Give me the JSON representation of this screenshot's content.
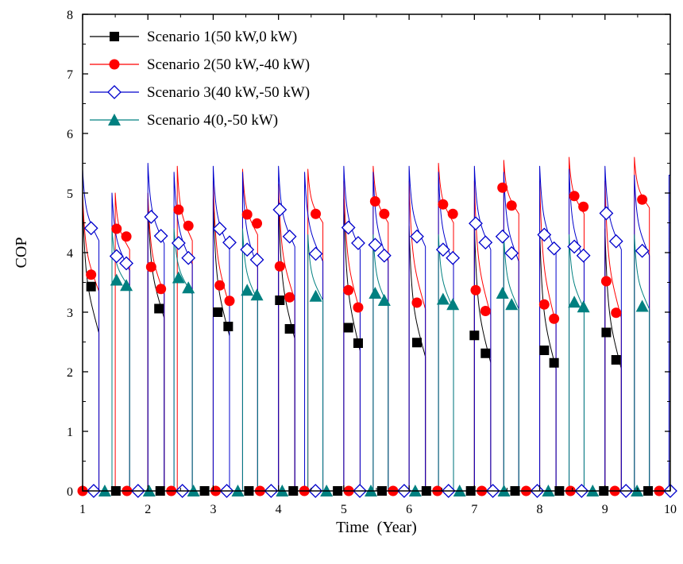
{
  "chart_data": {
    "type": "line",
    "xlabel": "Time  (Year)",
    "ylabel": "COP",
    "xlim": [
      1,
      10
    ],
    "ylim": [
      0,
      8
    ],
    "x_ticks": [
      "1",
      "2",
      "3",
      "4",
      "5",
      "6",
      "7",
      "8",
      "9",
      "10"
    ],
    "y_ticks": [
      "0",
      "1",
      "2",
      "3",
      "4",
      "5",
      "6",
      "7",
      "8"
    ],
    "grid": false,
    "legend_position": "top-left",
    "series": [
      {
        "name": "Scenario 1(50 kW,0 kW)",
        "color": "#000000",
        "marker": "square-filled",
        "cycles": [
          {
            "start": 1.0,
            "end": 1.25,
            "peak": 4.9,
            "low": 2.65
          },
          {
            "start": 2.0,
            "end": 2.25,
            "peak": 4.9,
            "low": 2.9
          },
          {
            "start": 3.0,
            "end": 3.25,
            "peak": 4.9,
            "low": 2.6
          },
          {
            "start": 4.0,
            "end": 4.25,
            "peak": 4.9,
            "low": 2.55
          },
          {
            "start": 5.0,
            "end": 5.25,
            "peak": 4.9,
            "low": 2.35
          },
          {
            "start": 6.0,
            "end": 6.25,
            "peak": 4.45,
            "low": 2.25
          },
          {
            "start": 7.0,
            "end": 7.25,
            "peak": 4.5,
            "low": 2.15
          },
          {
            "start": 8.0,
            "end": 8.25,
            "peak": 4.4,
            "low": 2.05
          },
          {
            "start": 9.0,
            "end": 9.25,
            "peak": 4.4,
            "low": 2.05
          }
        ],
        "markers": [
          [
            1.13,
            3.43
          ],
          [
            2.17,
            3.06
          ],
          [
            3.07,
            3.0
          ],
          [
            3.23,
            2.76
          ],
          [
            4.02,
            3.2
          ],
          [
            4.17,
            2.72
          ],
          [
            5.07,
            2.74
          ],
          [
            5.22,
            2.48
          ],
          [
            6.12,
            2.49
          ],
          [
            7.0,
            2.61
          ],
          [
            7.17,
            2.31
          ],
          [
            8.07,
            2.36
          ],
          [
            8.22,
            2.15
          ],
          [
            9.02,
            2.66
          ],
          [
            9.17,
            2.2
          ]
        ]
      },
      {
        "name": "Scenario 2(50 kW,-40 kW)",
        "color": "#ff0000",
        "marker": "circle-filled",
        "cycles": [
          {
            "start": 1.0,
            "end": 1.25,
            "peak": 5.0,
            "low": 3.35
          },
          {
            "start": 1.5,
            "end": 1.72,
            "peak": 5.0,
            "low": 4.05
          },
          {
            "start": 2.0,
            "end": 2.25,
            "peak": 5.0,
            "low": 3.3
          },
          {
            "start": 2.45,
            "end": 2.68,
            "peak": 5.45,
            "low": 4.2
          },
          {
            "start": 3.0,
            "end": 3.25,
            "peak": 5.2,
            "low": 3.1
          },
          {
            "start": 3.45,
            "end": 3.68,
            "peak": 5.4,
            "low": 4.3
          },
          {
            "start": 4.0,
            "end": 4.25,
            "peak": 5.15,
            "low": 3.2
          },
          {
            "start": 4.45,
            "end": 4.68,
            "peak": 5.4,
            "low": 4.5
          },
          {
            "start": 5.0,
            "end": 5.25,
            "peak": 5.2,
            "low": 3.0
          },
          {
            "start": 5.45,
            "end": 5.68,
            "peak": 5.45,
            "low": 4.5
          },
          {
            "start": 6.0,
            "end": 6.25,
            "peak": 5.2,
            "low": 3.05
          },
          {
            "start": 6.45,
            "end": 6.68,
            "peak": 5.5,
            "low": 4.5
          },
          {
            "start": 7.0,
            "end": 7.25,
            "peak": 5.2,
            "low": 2.95
          },
          {
            "start": 7.45,
            "end": 7.68,
            "peak": 5.55,
            "low": 4.65
          },
          {
            "start": 8.0,
            "end": 8.25,
            "peak": 5.2,
            "low": 2.8
          },
          {
            "start": 8.45,
            "end": 8.68,
            "peak": 5.6,
            "low": 4.65
          },
          {
            "start": 9.0,
            "end": 9.25,
            "peak": 5.2,
            "low": 2.9
          },
          {
            "start": 9.45,
            "end": 9.68,
            "peak": 5.6,
            "low": 4.75
          }
        ],
        "markers": [
          [
            1.13,
            3.63
          ],
          [
            1.52,
            4.4
          ],
          [
            1.67,
            4.27
          ],
          [
            2.05,
            3.76
          ],
          [
            2.2,
            3.39
          ],
          [
            2.47,
            4.72
          ],
          [
            2.62,
            4.45
          ],
          [
            3.1,
            3.45
          ],
          [
            3.25,
            3.19
          ],
          [
            3.52,
            4.64
          ],
          [
            3.67,
            4.49
          ],
          [
            4.02,
            3.77
          ],
          [
            4.17,
            3.25
          ],
          [
            4.57,
            4.65
          ],
          [
            5.07,
            3.37
          ],
          [
            5.22,
            3.08
          ],
          [
            5.48,
            4.86
          ],
          [
            5.62,
            4.65
          ],
          [
            6.12,
            3.16
          ],
          [
            6.52,
            4.81
          ],
          [
            6.67,
            4.65
          ],
          [
            7.02,
            3.37
          ],
          [
            7.17,
            3.02
          ],
          [
            7.43,
            5.09
          ],
          [
            7.57,
            4.79
          ],
          [
            8.07,
            3.13
          ],
          [
            8.22,
            2.89
          ],
          [
            8.53,
            4.95
          ],
          [
            8.67,
            4.77
          ],
          [
            9.02,
            3.52
          ],
          [
            9.17,
            2.99
          ],
          [
            9.57,
            4.89
          ]
        ]
      },
      {
        "name": "Scenario 3(40 kW,-50 kW)",
        "color": "#0000cc",
        "marker": "diamond-open",
        "cycles": [
          {
            "start": 1.0,
            "end": 1.25,
            "peak": 5.4,
            "low": 4.2
          },
          {
            "start": 1.45,
            "end": 1.72,
            "peak": 5.0,
            "low": 3.7
          },
          {
            "start": 2.0,
            "end": 2.25,
            "peak": 5.5,
            "low": 4.15
          },
          {
            "start": 2.4,
            "end": 2.68,
            "peak": 5.35,
            "low": 3.8
          },
          {
            "start": 3.0,
            "end": 3.25,
            "peak": 5.45,
            "low": 4.05
          },
          {
            "start": 3.45,
            "end": 3.68,
            "peak": 5.35,
            "low": 3.75
          },
          {
            "start": 4.0,
            "end": 4.25,
            "peak": 5.45,
            "low": 4.1
          },
          {
            "start": 4.4,
            "end": 4.68,
            "peak": 5.35,
            "low": 3.85
          },
          {
            "start": 5.0,
            "end": 5.25,
            "peak": 5.45,
            "low": 4.05
          },
          {
            "start": 5.45,
            "end": 5.68,
            "peak": 5.35,
            "low": 3.85
          },
          {
            "start": 6.0,
            "end": 6.25,
            "peak": 5.45,
            "low": 4.1
          },
          {
            "start": 6.45,
            "end": 6.68,
            "peak": 5.35,
            "low": 3.8
          },
          {
            "start": 7.0,
            "end": 7.25,
            "peak": 5.45,
            "low": 4.05
          },
          {
            "start": 7.45,
            "end": 7.68,
            "peak": 5.35,
            "low": 3.85
          },
          {
            "start": 8.0,
            "end": 8.25,
            "peak": 5.45,
            "low": 4.0
          },
          {
            "start": 8.45,
            "end": 8.68,
            "peak": 5.4,
            "low": 3.85
          },
          {
            "start": 9.0,
            "end": 9.25,
            "peak": 5.45,
            "low": 4.05
          },
          {
            "start": 9.45,
            "end": 9.68,
            "peak": 5.3,
            "low": 3.95
          },
          {
            "start": 9.98,
            "end": 10.0,
            "peak": 5.3,
            "low": 5.3
          }
        ],
        "markers": [
          [
            1.13,
            4.41
          ],
          [
            1.52,
            3.94
          ],
          [
            1.67,
            3.82
          ],
          [
            2.05,
            4.6
          ],
          [
            2.2,
            4.28
          ],
          [
            2.47,
            4.16
          ],
          [
            2.62,
            3.91
          ],
          [
            3.1,
            4.4
          ],
          [
            3.25,
            4.17
          ],
          [
            3.52,
            4.05
          ],
          [
            3.67,
            3.88
          ],
          [
            4.02,
            4.72
          ],
          [
            4.17,
            4.27
          ],
          [
            4.57,
            3.98
          ],
          [
            5.07,
            4.42
          ],
          [
            5.22,
            4.16
          ],
          [
            5.48,
            4.13
          ],
          [
            5.62,
            3.95
          ],
          [
            6.12,
            4.27
          ],
          [
            6.52,
            4.05
          ],
          [
            6.67,
            3.91
          ],
          [
            7.02,
            4.49
          ],
          [
            7.17,
            4.17
          ],
          [
            7.43,
            4.27
          ],
          [
            7.57,
            3.99
          ],
          [
            8.07,
            4.3
          ],
          [
            8.22,
            4.07
          ],
          [
            8.53,
            4.1
          ],
          [
            8.67,
            3.95
          ],
          [
            9.02,
            4.66
          ],
          [
            9.17,
            4.19
          ],
          [
            9.57,
            4.03
          ]
        ]
      },
      {
        "name": "Scenario 4(0,-50 kW)",
        "color": "#008080",
        "marker": "triangle-filled",
        "cycles": [
          {
            "start": 1.45,
            "end": 1.72,
            "peak": 4.4,
            "low": 3.4
          },
          {
            "start": 2.4,
            "end": 2.68,
            "peak": 4.4,
            "low": 3.3
          },
          {
            "start": 3.45,
            "end": 3.68,
            "peak": 4.4,
            "low": 3.2
          },
          {
            "start": 4.45,
            "end": 4.68,
            "peak": 4.3,
            "low": 3.2
          },
          {
            "start": 5.45,
            "end": 5.68,
            "peak": 4.3,
            "low": 3.1
          },
          {
            "start": 6.45,
            "end": 6.68,
            "peak": 4.3,
            "low": 3.05
          },
          {
            "start": 7.45,
            "end": 7.68,
            "peak": 4.3,
            "low": 3.05
          },
          {
            "start": 8.45,
            "end": 8.68,
            "peak": 4.3,
            "low": 3.05
          },
          {
            "start": 9.45,
            "end": 9.68,
            "peak": 4.3,
            "low": 3.05
          }
        ],
        "markers": [
          [
            1.52,
            3.54
          ],
          [
            1.67,
            3.45
          ],
          [
            2.47,
            3.58
          ],
          [
            2.62,
            3.41
          ],
          [
            3.52,
            3.37
          ],
          [
            3.67,
            3.29
          ],
          [
            4.57,
            3.27
          ],
          [
            5.48,
            3.32
          ],
          [
            5.62,
            3.2
          ],
          [
            6.52,
            3.22
          ],
          [
            6.67,
            3.13
          ],
          [
            7.43,
            3.32
          ],
          [
            7.57,
            3.13
          ],
          [
            8.53,
            3.17
          ],
          [
            8.67,
            3.09
          ],
          [
            9.57,
            3.1
          ]
        ]
      }
    ]
  }
}
